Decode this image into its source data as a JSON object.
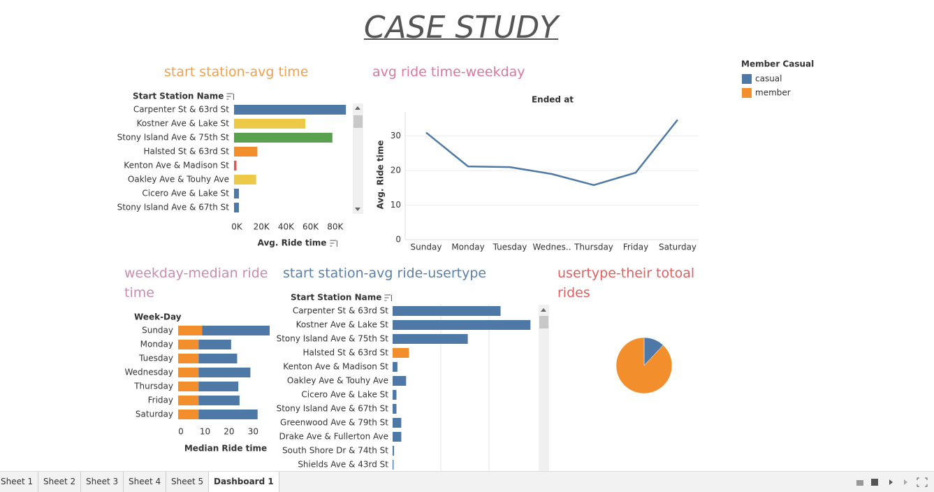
{
  "title": "CASE STUDY",
  "chart_data": [
    {
      "type": "hbar",
      "title": "start station-avg time",
      "y_label": "Start Station Name",
      "x_label": "Avg. Ride time",
      "categories": [
        "Carpenter St & 63rd St",
        "Kostner Ave & Lake St",
        "Stony Island Ave & 75th St",
        "Halsted St & 63rd St",
        "Kenton Ave & Madison St",
        "Oakley Ave & Touhy Ave",
        "Cicero Ave & Lake St",
        "Stony Island Ave & 67th St"
      ],
      "values": [
        91000,
        58000,
        80000,
        19000,
        2000,
        18000,
        4000,
        4000
      ],
      "colors": [
        "#4e79a7",
        "#edc948",
        "#59a14f",
        "#f28e2b",
        "#e15759",
        "#edc948",
        "#4e79a7",
        "#4e79a7"
      ],
      "xlim": [
        0,
        100000
      ],
      "xticks": [
        {
          "value": 0,
          "label": "0K"
        },
        {
          "value": 20000,
          "label": "20K"
        },
        {
          "value": 40000,
          "label": "40K"
        },
        {
          "value": 60000,
          "label": "60K"
        },
        {
          "value": 80000,
          "label": "80K"
        }
      ]
    },
    {
      "type": "line",
      "title": "avg ride time-weekday",
      "header": "Ended at",
      "y_label": "Avg. Ride time",
      "categories": [
        "Sunday",
        "Monday",
        "Tuesday",
        "Wednes..",
        "Thursday",
        "Friday",
        "Saturday"
      ],
      "values": [
        31,
        21.2,
        21,
        19,
        15.8,
        19.4,
        34.7
      ],
      "color": "#4e79a7",
      "ylim": [
        0,
        37
      ],
      "yticks": [
        0,
        10,
        20,
        30
      ],
      "grid": true
    },
    {
      "type": "stacked-hbar",
      "title": "weekday-median ride time",
      "y_label": "Week-Day",
      "x_label": "Median Ride time",
      "categories": [
        "Sunday",
        "Monday",
        "Tuesday",
        "Wednesday",
        "Thursday",
        "Friday",
        "Saturday"
      ],
      "legend_title": "Member Casual",
      "series": [
        {
          "name": "casual",
          "color": "#4e79a7",
          "values": [
            28,
            13.5,
            16,
            21.5,
            16.5,
            17,
            24.5
          ]
        },
        {
          "name": "member",
          "color": "#f28e2b",
          "values": [
            10,
            8.5,
            8.5,
            8.5,
            8.5,
            8.5,
            8.5
          ]
        }
      ],
      "xlim": [
        0,
        38
      ],
      "xticks": [
        0,
        10,
        20,
        30
      ]
    },
    {
      "type": "hbar",
      "title": "start station-avg ride-usertype",
      "y_label": "Start Station Name",
      "categories": [
        "Carpenter St & 63rd St",
        "Kostner Ave & Lake St",
        "Stony Island Ave & 75th St",
        "Halsted St & 63rd St",
        "Kenton Ave & Madison St",
        "Oakley Ave & Touhy Ave",
        "Cicero Ave & Lake St",
        "Stony Island Ave & 67th St",
        "Greenwood Ave & 79th St",
        "Drake Ave & Fullerton Ave",
        "South Shore Dr & 74th St",
        "Shields Ave & 43rd St"
      ],
      "values": [
        112000,
        143000,
        78000,
        17000,
        5000,
        14000,
        4000,
        4000,
        9000,
        9000,
        1500,
        1000
      ],
      "colors": [
        "#4e79a7",
        "#4e79a7",
        "#4e79a7",
        "#f28e2b",
        "#4e79a7",
        "#4e79a7",
        "#4e79a7",
        "#4e79a7",
        "#4e79a7",
        "#4e79a7",
        "#4e79a7",
        "#4e79a7"
      ],
      "xlim": [
        0,
        150000
      ],
      "xticks": [
        50000,
        100000
      ],
      "grid": true
    },
    {
      "type": "pie",
      "title": "usertype-their totoal rides",
      "values": [
        12,
        88
      ],
      "colors": [
        "#4e79a7",
        "#f28e2b"
      ]
    }
  ],
  "tabs": [
    "Sheet 1",
    "Sheet 2",
    "Sheet 3",
    "Sheet 4",
    "Sheet 5",
    "Dashboard 1"
  ]
}
